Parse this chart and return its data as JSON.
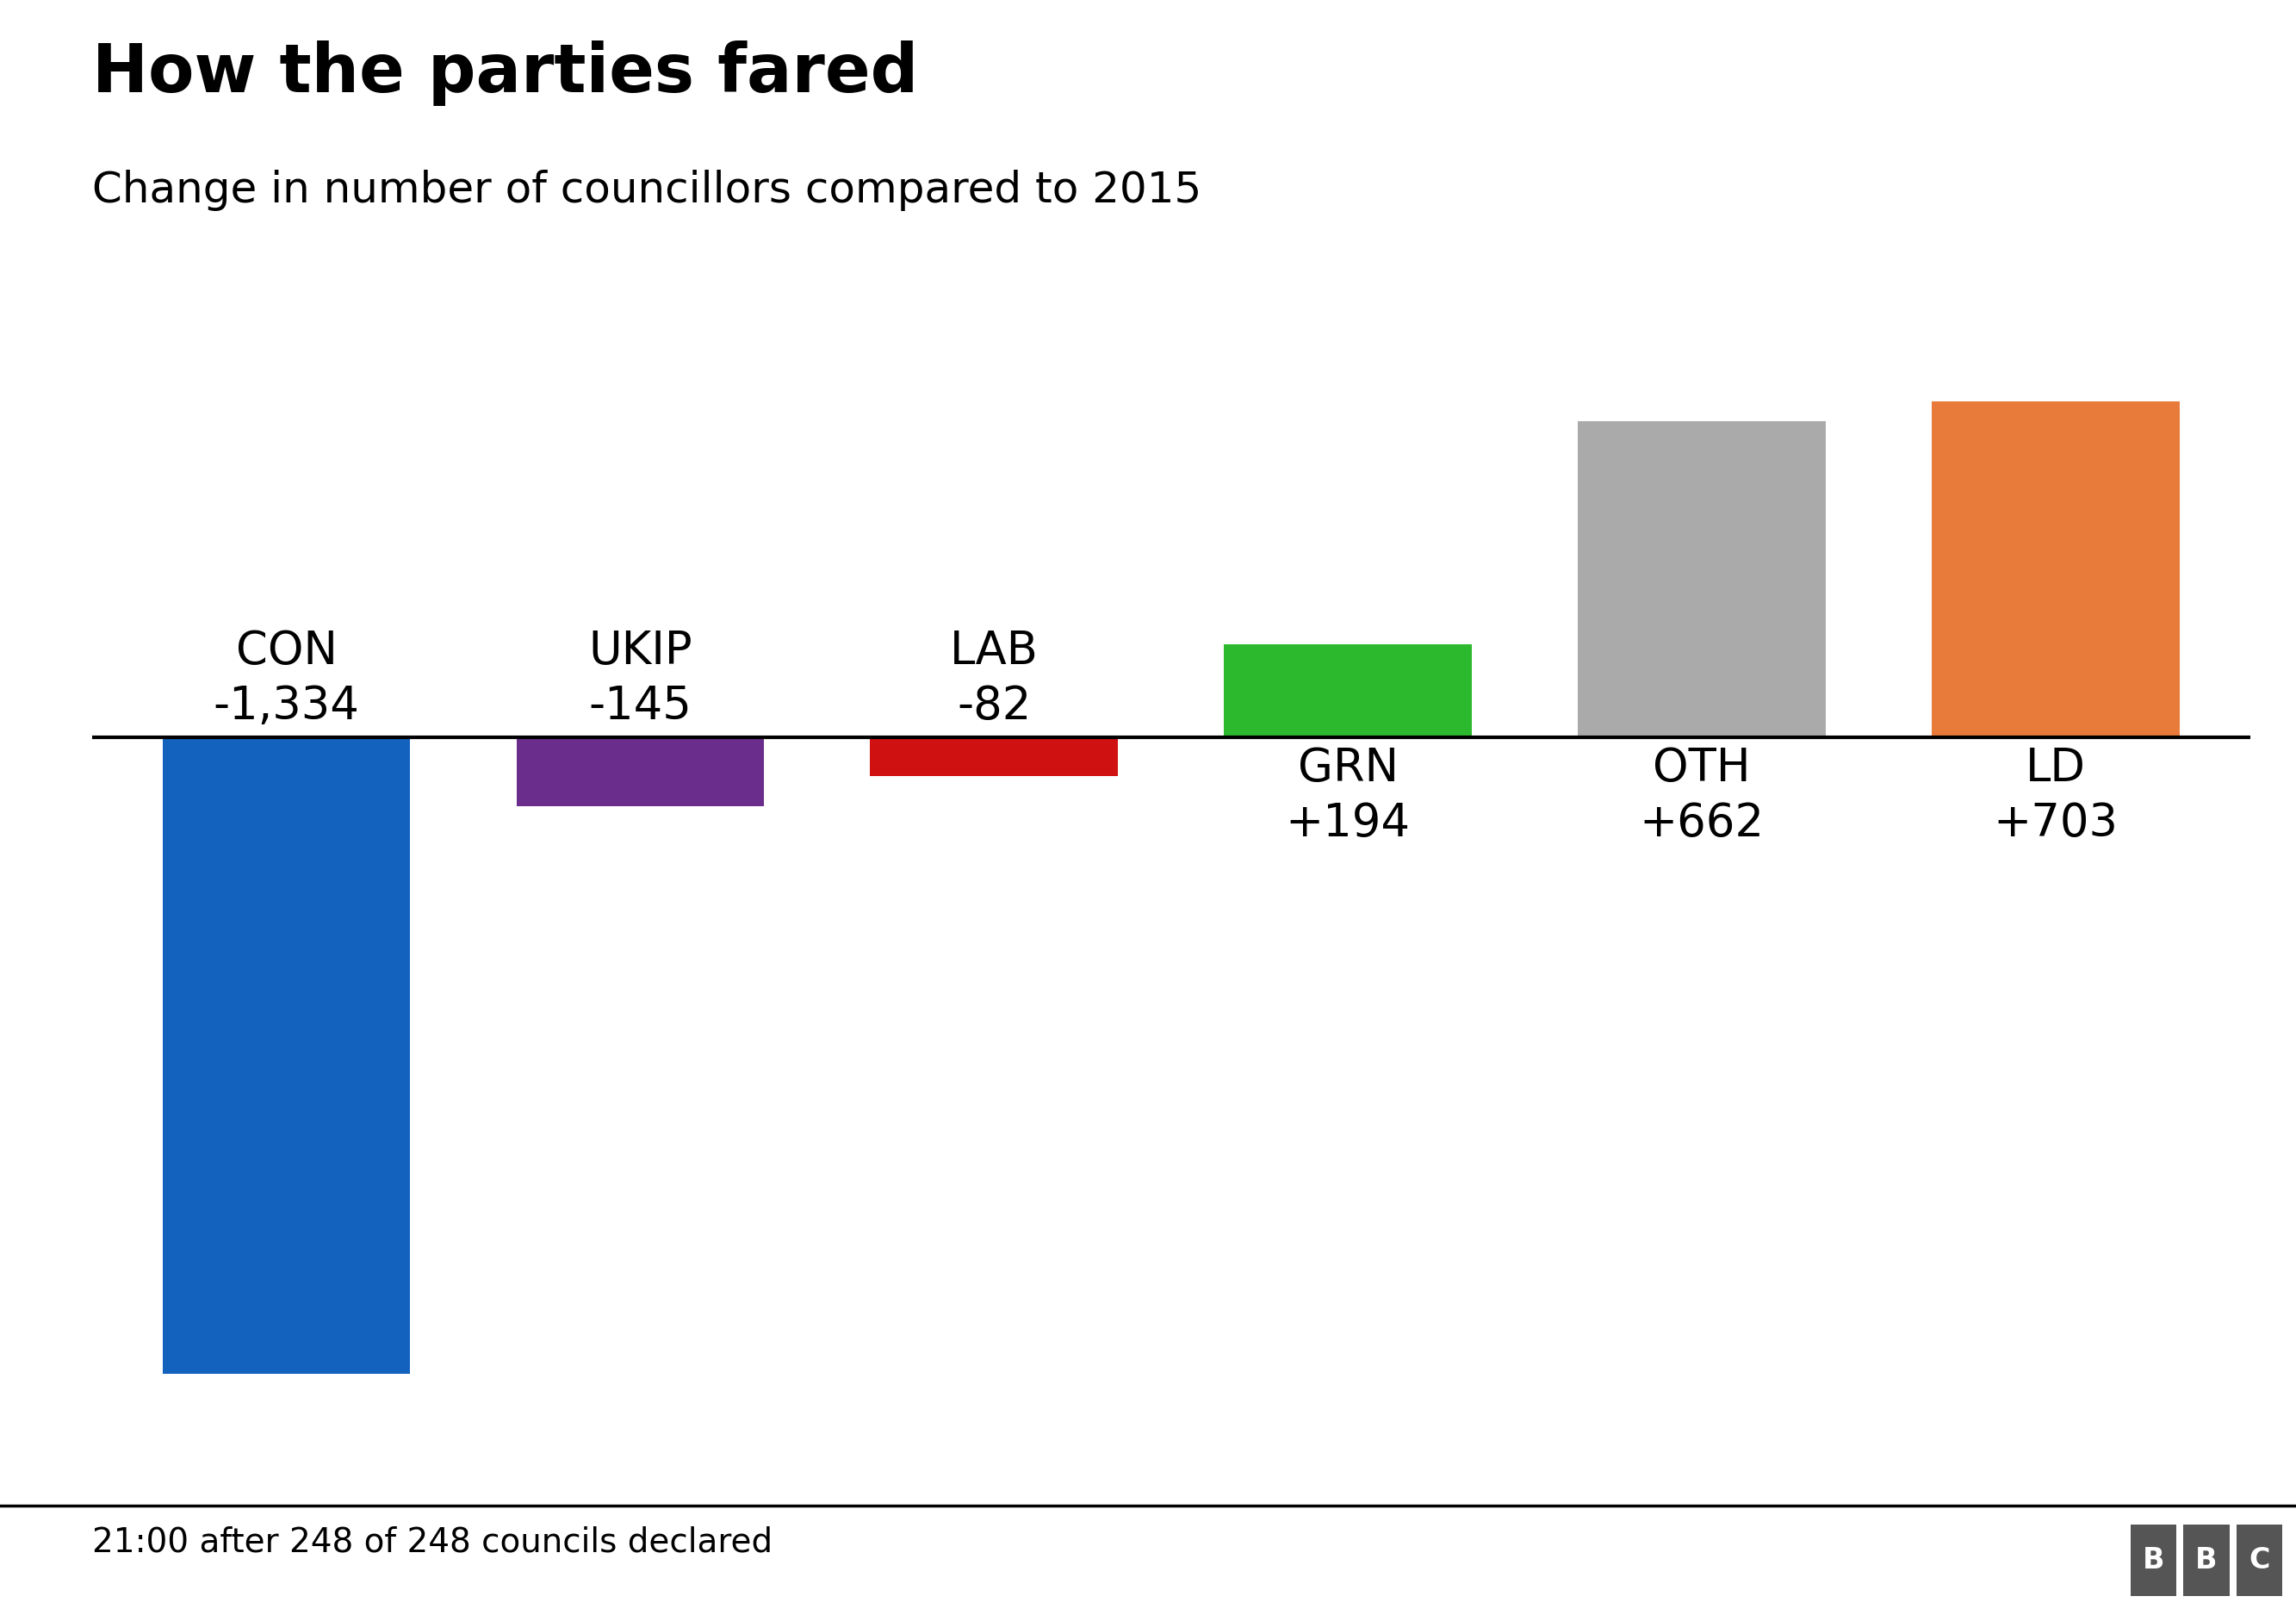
{
  "title": "How the parties fared",
  "subtitle": "Change in number of councillors compared to 2015",
  "footer": "21:00 after 248 of 248 councils declared",
  "parties": [
    "CON",
    "UKIP",
    "LAB",
    "GRN",
    "OTH",
    "LD"
  ],
  "values": [
    -1334,
    -145,
    -82,
    194,
    662,
    703
  ],
  "labels_top": [
    "CON\n-1,334",
    "UKIP\n-145",
    "LAB\n-82",
    "",
    "",
    ""
  ],
  "labels_bottom": [
    "",
    "",
    "",
    "GRN\n+194",
    "OTH\n+662",
    "LD\n+703"
  ],
  "colors": [
    "#1363be",
    "#6b2d8b",
    "#d01111",
    "#2db92d",
    "#aaaaaa",
    "#e87b3a"
  ],
  "background_color": "#ffffff",
  "title_fontsize": 56,
  "subtitle_fontsize": 36,
  "label_fontsize": 38,
  "footer_fontsize": 28,
  "bar_width": 0.7,
  "ylim": [
    -1500,
    800
  ]
}
